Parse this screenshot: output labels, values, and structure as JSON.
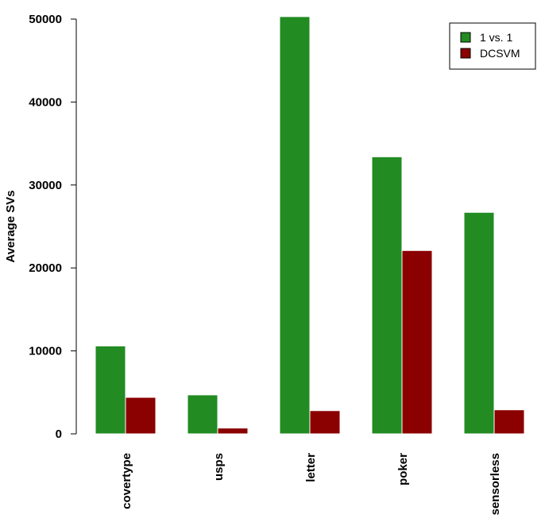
{
  "chart_data": {
    "type": "bar",
    "categories": [
      "covertype",
      "usps",
      "letter",
      "poker",
      "sensorless"
    ],
    "series": [
      {
        "name": "1 vs. 1",
        "color": "#228b22",
        "values": [
          10600,
          4700,
          50300,
          33400,
          26700
        ]
      },
      {
        "name": "DCSVM",
        "color": "#8b0000",
        "values": [
          4400,
          700,
          2800,
          22100,
          2900
        ]
      }
    ],
    "title": "",
    "xlabel": "",
    "ylabel": "Average SVs",
    "ylim": [
      0,
      50000
    ],
    "yticks": [
      0,
      10000,
      20000,
      30000,
      40000,
      50000
    ],
    "legend": "top-right",
    "grid": false
  }
}
